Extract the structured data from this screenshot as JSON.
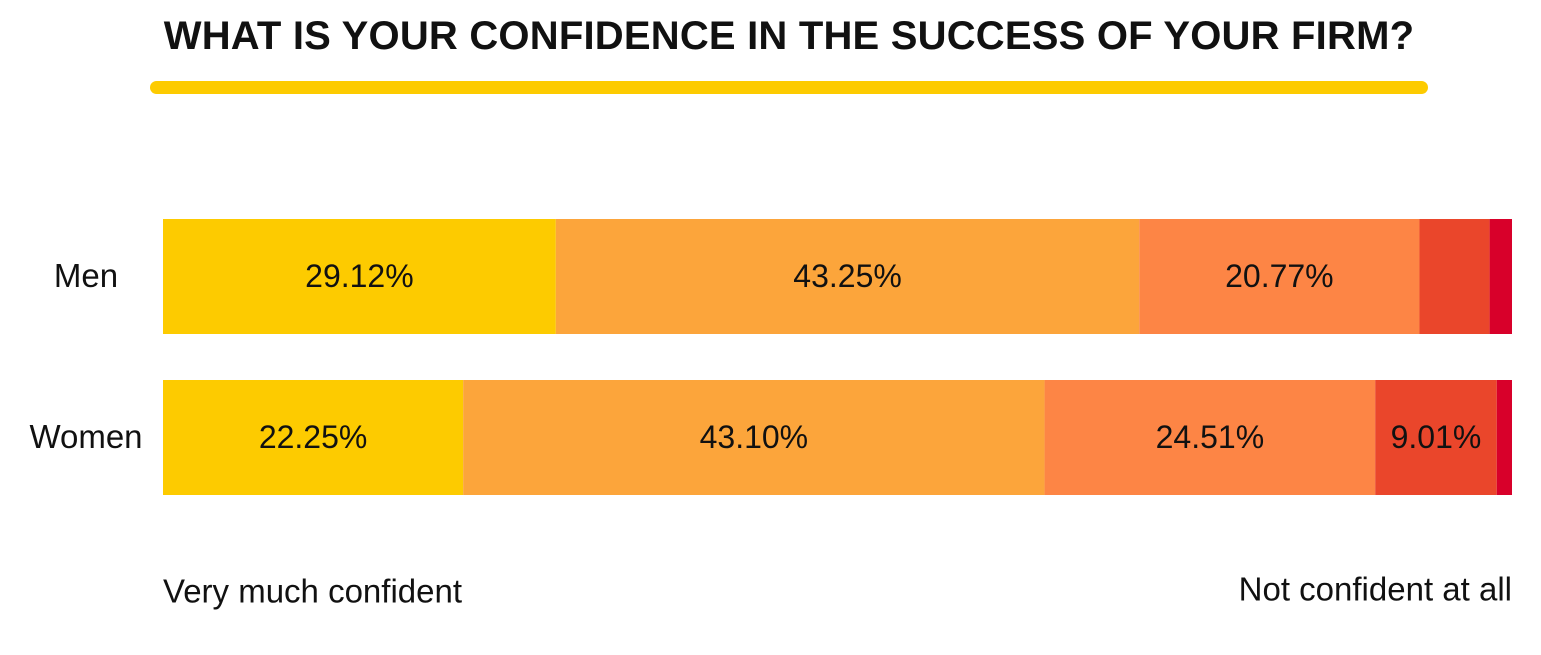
{
  "title": "WHAT IS YOUR CONFIDENCE IN THE SUCCESS OF YOUR FIRM?",
  "colors": {
    "accent_underline": "#fdcb00",
    "segments": [
      "#fdcb00",
      "#fca53b",
      "#fd8545",
      "#ea462b",
      "#d8002a"
    ],
    "text": "#111111"
  },
  "chart_data": {
    "type": "bar",
    "orientation": "horizontal",
    "stacked": true,
    "normalized_to_100_percent": true,
    "categories": [
      "Men",
      "Women"
    ],
    "series": [
      {
        "values": [
          29.12,
          22.25
        ],
        "value_labels": [
          "29.12%",
          "22.25%"
        ]
      },
      {
        "values": [
          43.25,
          43.1
        ],
        "value_labels": [
          "43.25%",
          "43.10%"
        ]
      },
      {
        "values": [
          20.77,
          24.51
        ],
        "value_labels": [
          "20.77%",
          "24.51%"
        ]
      },
      {
        "values": [
          5.2,
          9.01
        ],
        "value_labels": [
          "",
          "9.01%"
        ]
      },
      {
        "values": [
          1.66,
          1.13
        ],
        "value_labels": [
          "",
          ""
        ]
      }
    ],
    "scale_labels": {
      "left": "Very much confident",
      "right": "Not confident at all"
    },
    "legend": "none",
    "grid": false
  }
}
